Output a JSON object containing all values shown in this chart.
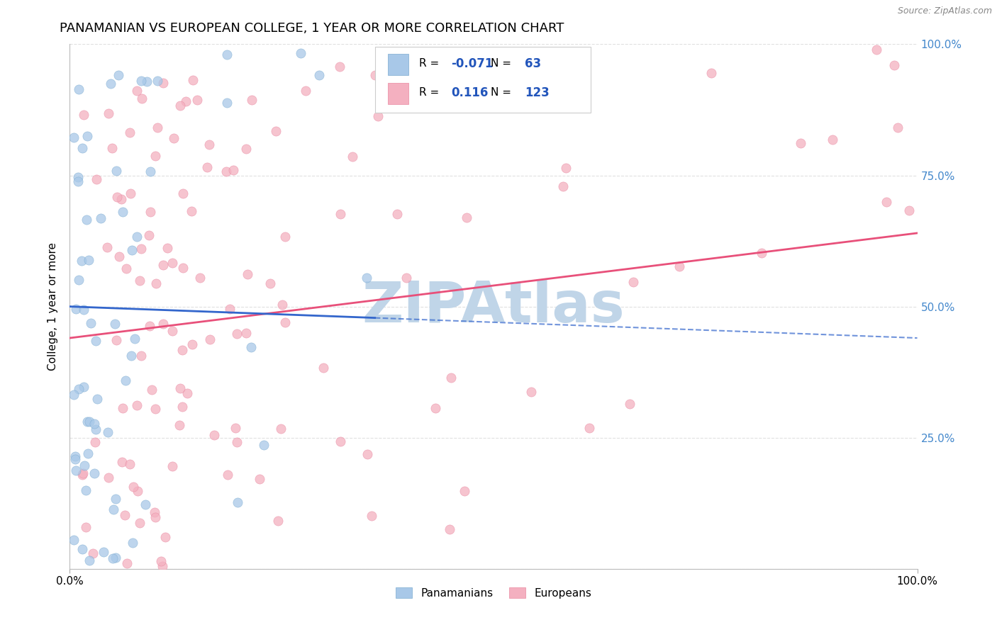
{
  "title": "PANAMANIAN VS EUROPEAN COLLEGE, 1 YEAR OR MORE CORRELATION CHART",
  "source": "Source: ZipAtlas.com",
  "ylabel": "College, 1 year or more",
  "xlim": [
    0.0,
    1.0
  ],
  "ylim": [
    0.0,
    1.0
  ],
  "pan_R": -0.071,
  "pan_N": 63,
  "eur_R": 0.116,
  "eur_N": 123,
  "pan_color": "#A8C8E8",
  "eur_color": "#F4B0C0",
  "pan_edge_color": "#7AAAD0",
  "eur_edge_color": "#E888A0",
  "pan_line_color": "#3366CC",
  "eur_line_color": "#E8507A",
  "watermark": "ZIPAtlas",
  "watermark_color": "#C0D5E8",
  "background_color": "#FFFFFF",
  "grid_color": "#DDDDDD",
  "legend_R_color": "#2255BB",
  "legend_N_color": "#222222",
  "right_axis_color": "#4488CC"
}
